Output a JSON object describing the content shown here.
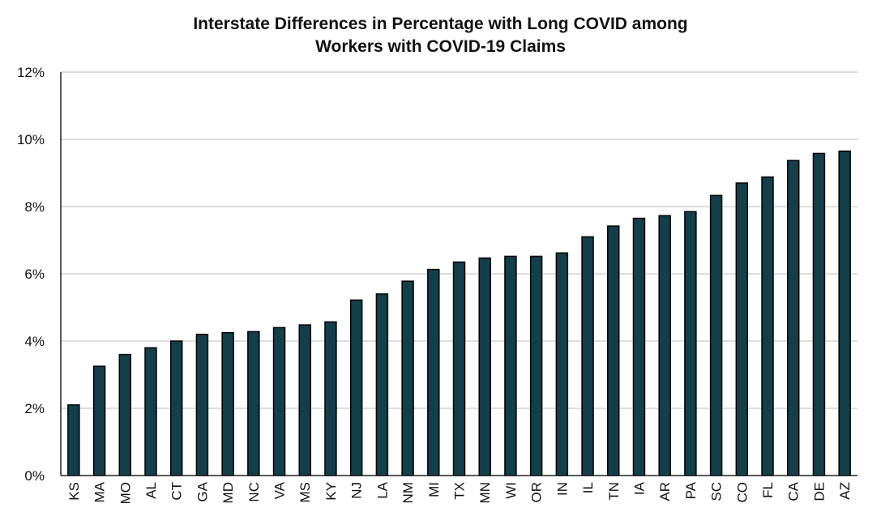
{
  "chart_data": {
    "type": "bar",
    "title": "Interstate Differences in Percentage with Long COVID among Workers with COVID-19 Claims",
    "title_lines": [
      "Interstate Differences in Percentage with Long COVID among",
      "Workers with COVID-19 Claims"
    ],
    "xlabel": "",
    "ylabel": "",
    "ylim": [
      0,
      12
    ],
    "yticks": [
      0,
      2,
      4,
      6,
      8,
      10,
      12
    ],
    "ytick_labels": [
      "0%",
      "2%",
      "4%",
      "6%",
      "8%",
      "10%",
      "12%"
    ],
    "grid": true,
    "bar_color": "#123f4a",
    "categories": [
      "KS",
      "MA",
      "MO",
      "AL",
      "CT",
      "GA",
      "MD",
      "NC",
      "VA",
      "MS",
      "KY",
      "NJ",
      "LA",
      "NM",
      "MI",
      "TX",
      "MN",
      "WI",
      "OR",
      "IN",
      "IL",
      "TN",
      "IA",
      "AR",
      "PA",
      "SC",
      "CO",
      "FL",
      "CA",
      "DE",
      "AZ"
    ],
    "values": [
      2.1,
      3.25,
      3.6,
      3.8,
      4.0,
      4.2,
      4.25,
      4.28,
      4.4,
      4.48,
      4.57,
      5.22,
      5.4,
      5.78,
      6.13,
      6.35,
      6.47,
      6.52,
      6.52,
      6.62,
      7.1,
      7.42,
      7.65,
      7.73,
      7.85,
      8.33,
      8.7,
      8.88,
      9.37,
      9.58,
      9.65
    ]
  }
}
